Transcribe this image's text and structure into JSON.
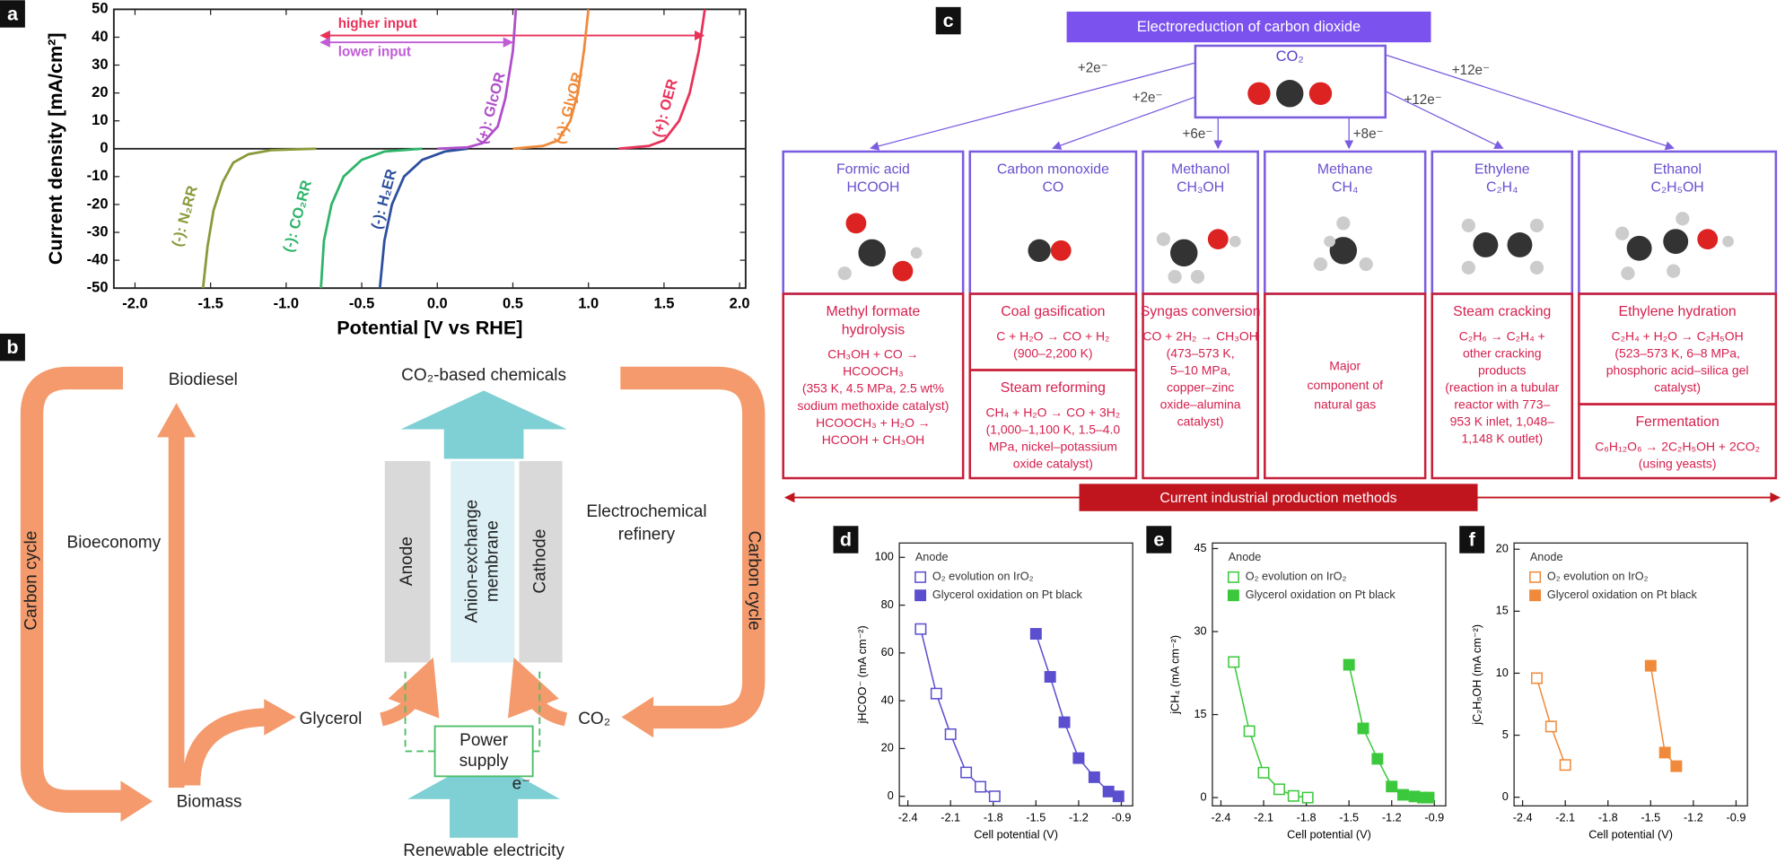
{
  "panel_labels": [
    "a",
    "b",
    "c",
    "d",
    "e",
    "f"
  ],
  "chart_data": [
    {
      "type": "line",
      "xlabel": "Potential [V vs RHE]",
      "ylabel": "Current density [mA/cm²]",
      "xlim": [
        -2.14,
        2.04
      ],
      "ylim": [
        -50,
        50
      ],
      "xticks": [
        {
          "value": -2,
          "label": "-2.0"
        },
        {
          "value": -1.5,
          "label": "-1.5"
        },
        {
          "value": -1,
          "label": "-1.0"
        },
        {
          "value": -0.5,
          "label": "-0.5"
        },
        {
          "value": 0,
          "label": "0.0"
        },
        {
          "value": 0.5,
          "label": "0.5"
        },
        {
          "value": 1,
          "label": "1.0"
        },
        {
          "value": 1.5,
          "label": "1.5"
        },
        {
          "value": 2,
          "label": "2.0"
        }
      ],
      "yticks": [
        -50,
        -40,
        -30,
        -20,
        -10,
        0,
        10,
        20,
        30,
        40,
        50
      ],
      "annotations": [
        "higher input",
        "lower input"
      ],
      "series": [
        {
          "name": "(-): N₂RR",
          "color": "#8a9a3a",
          "x": [
            -1.55,
            -1.52,
            -1.48,
            -1.42,
            -1.35,
            -1.25,
            -1.1,
            -0.8
          ],
          "values": [
            -50,
            -35,
            -22,
            -12,
            -5,
            -2,
            -0.5,
            0
          ]
        },
        {
          "name": "(-): CO₂RR",
          "color": "#2fb56a",
          "x": [
            -0.77,
            -0.75,
            -0.7,
            -0.62,
            -0.5,
            -0.35,
            -0.1
          ],
          "values": [
            -50,
            -33,
            -20,
            -10,
            -4,
            -1,
            0
          ]
        },
        {
          "name": "(-): H₂ER",
          "color": "#2d4f9e",
          "x": [
            -0.38,
            -0.35,
            -0.3,
            -0.22,
            -0.1,
            0.05,
            0.2
          ],
          "values": [
            -50,
            -33,
            -20,
            -10,
            -4,
            -1,
            0
          ]
        },
        {
          "name": "(+): GlcOR",
          "color": "#b04fc9",
          "x": [
            0,
            0.2,
            0.3,
            0.4,
            0.45,
            0.5,
            0.52
          ],
          "values": [
            0,
            0.5,
            2,
            8,
            18,
            35,
            50
          ]
        },
        {
          "name": "(+): GlyOR",
          "color": "#f08a3a",
          "x": [
            0.5,
            0.7,
            0.8,
            0.88,
            0.93,
            0.97,
            1.0
          ],
          "values": [
            0,
            1,
            3,
            10,
            20,
            35,
            50
          ]
        },
        {
          "name": "(+): OER",
          "color": "#e8325a",
          "x": [
            1.2,
            1.4,
            1.5,
            1.6,
            1.67,
            1.73,
            1.77
          ],
          "values": [
            0,
            1,
            3,
            10,
            20,
            35,
            50
          ]
        }
      ]
    },
    {
      "type": "line",
      "legend_title": "Anode",
      "xlabel": "Cell potential (V)",
      "ylabel": "jHCOO⁻ (mA cm⁻²)",
      "xlim": [
        -2.46,
        -0.82
      ],
      "ylim": [
        -4,
        106
      ],
      "xticks": [
        -2.4,
        -2.1,
        -1.8,
        -1.5,
        -1.2,
        -0.9
      ],
      "yticks": [
        0,
        20,
        40,
        60,
        80,
        100
      ],
      "series": [
        {
          "name": "O₂ evolution on IrO₂",
          "color": "#5b4fcf",
          "marker": "hollow-square",
          "x": [
            -2.31,
            -2.2,
            -2.1,
            -1.99,
            -1.89,
            -1.79
          ],
          "values": [
            70,
            43,
            26,
            10,
            4,
            0
          ]
        },
        {
          "name": "Glycerol oxidation on Pt black",
          "color": "#5b4fcf",
          "marker": "filled-square",
          "x": [
            -1.5,
            -1.4,
            -1.3,
            -1.2,
            -1.09,
            -0.99,
            -0.92
          ],
          "values": [
            68,
            50,
            31,
            16,
            8,
            2,
            0
          ]
        }
      ]
    },
    {
      "type": "line",
      "legend_title": "Anode",
      "xlabel": "Cell potential (V)",
      "ylabel": "jCH₄ (mA cm⁻²)",
      "xlim": [
        -2.46,
        -0.82
      ],
      "ylim": [
        -1.5,
        46
      ],
      "xticks": [
        -2.4,
        -2.1,
        -1.8,
        -1.5,
        -1.2,
        -0.9
      ],
      "yticks": [
        0,
        15,
        30,
        45
      ],
      "series": [
        {
          "name": "O₂ evolution on IrO₂",
          "color": "#3cc83c",
          "marker": "hollow-square",
          "x": [
            -2.31,
            -2.2,
            -2.1,
            -1.99,
            -1.89,
            -1.79
          ],
          "values": [
            24.5,
            12,
            4.5,
            1.5,
            0.3,
            0
          ]
        },
        {
          "name": "Glycerol oxidation on Pt black",
          "color": "#3cc83c",
          "marker": "filled-square",
          "x": [
            -1.5,
            -1.4,
            -1.3,
            -1.2,
            -1.12,
            -1.04,
            -0.98,
            -0.94
          ],
          "values": [
            24,
            12.5,
            7,
            2,
            0.5,
            0.2,
            0,
            0
          ]
        }
      ]
    },
    {
      "type": "line",
      "legend_title": "Anode",
      "xlabel": "Cell potential (V)",
      "ylabel": "jC₂H₅OH (mA cm⁻²)",
      "xlim": [
        -2.46,
        -0.82
      ],
      "ylim": [
        -0.7,
        20.5
      ],
      "xticks": [
        -2.4,
        -2.1,
        -1.8,
        -1.5,
        -1.2,
        -0.9
      ],
      "yticks": [
        0,
        5,
        10,
        15,
        20
      ],
      "series": [
        {
          "name": "O₂ evolution on IrO₂",
          "color": "#f08a3a",
          "marker": "hollow-square",
          "x": [
            -2.3,
            -2.2,
            -2.1
          ],
          "values": [
            9.6,
            5.7,
            2.6
          ]
        },
        {
          "name": "Glycerol oxidation on Pt black",
          "color": "#f08a3a",
          "marker": "filled-square",
          "x": [
            -1.5,
            -1.4,
            -1.32
          ],
          "values": [
            10.6,
            3.6,
            2.5
          ]
        }
      ]
    }
  ],
  "diagram_b": {
    "biodiesel": "Biodiesel",
    "co2_chemicals": "CO₂-based chemicals",
    "carbon_cycle": [
      "Carbon cycle",
      "Carbon cycle"
    ],
    "bioeconomy": "Bioeconomy",
    "anode": "Anode",
    "membrane": [
      "Anion-exchange",
      "membrane"
    ],
    "cathode": "Cathode",
    "refinery": [
      "Electrochemical",
      "refinery"
    ],
    "glycerol": "Glycerol",
    "co2": "CO₂",
    "power_supply": [
      "Power",
      "supply"
    ],
    "electron": "e⁻",
    "biomass": "Biomass",
    "renewable": "Renewable electricity"
  },
  "diagram_c": {
    "title": "Electroreduction of carbon dioxide",
    "reactant": "CO₂",
    "products": [
      {
        "name": "Formic acid",
        "formula": "HCOOH",
        "electrons": "+2e⁻",
        "methods": [
          {
            "title": [
              "Methyl formate",
              "hydrolysis"
            ],
            "lines": [
              "CH₃OH + CO →",
              "HCOOCH₃",
              "(353 K, 4.5 MPa, 2.5 wt%",
              "sodium methoxide catalyst)",
              "HCOOCH₃ + H₂O →",
              "HCOOH + CH₃OH"
            ]
          }
        ]
      },
      {
        "name": "Carbon monoxide",
        "formula": "CO",
        "electrons": "+2e⁻",
        "methods": [
          {
            "title": [
              "Coal gasification"
            ],
            "lines": [
              "C + H₂O → CO + H₂",
              "(900–2,200 K)"
            ]
          },
          {
            "title": [
              "Steam reforming"
            ],
            "lines": [
              "CH₄ + H₂O → CO + 3H₂",
              "(1,000–1,100 K, 1.5–4.0",
              "MPa, nickel–potassium",
              "oxide catalyst)"
            ]
          }
        ]
      },
      {
        "name": "Methanol",
        "formula": "CH₃OH",
        "electrons": "+6e⁻",
        "methods": [
          {
            "title": [
              "Syngas conversion"
            ],
            "lines": [
              "CO + 2H₂ → CH₃OH",
              "(473–573 K,",
              "5–10 MPa,",
              "copper–zinc",
              "oxide–alumina",
              "catalyst)"
            ]
          }
        ]
      },
      {
        "name": "Methane",
        "formula": "CH₄",
        "electrons": "+8e⁻",
        "methods": [
          {
            "lines": [
              "Major",
              "component of",
              "natural gas"
            ]
          }
        ]
      },
      {
        "name": "Ethylene",
        "formula": "C₂H₄",
        "electrons": "+12e⁻",
        "methods": [
          {
            "title": [
              "Steam cracking"
            ],
            "lines": [
              "C₂H₆ → C₂H₄ +",
              "other cracking",
              "products",
              "(reaction in a tubular",
              "reactor with 773–",
              "953 K inlet, 1,048–",
              "1,148 K outlet)"
            ]
          }
        ]
      },
      {
        "name": "Ethanol",
        "formula": "C₂H₅OH",
        "electrons": "+12e⁻",
        "methods": [
          {
            "title": [
              "Ethylene hydration"
            ],
            "lines": [
              "C₂H₄ + H₂O → C₂H₅OH",
              "(523–573 K, 6–8 MPa,",
              "phosphoric acid–silica gel",
              "catalyst)"
            ]
          },
          {
            "title": [
              "Fermentation"
            ],
            "lines": [
              "C₆H₁₂O₆ → 2C₂H₅OH + 2CO₂",
              "(using yeasts)"
            ]
          }
        ]
      }
    ],
    "footer": "Current industrial production methods"
  }
}
